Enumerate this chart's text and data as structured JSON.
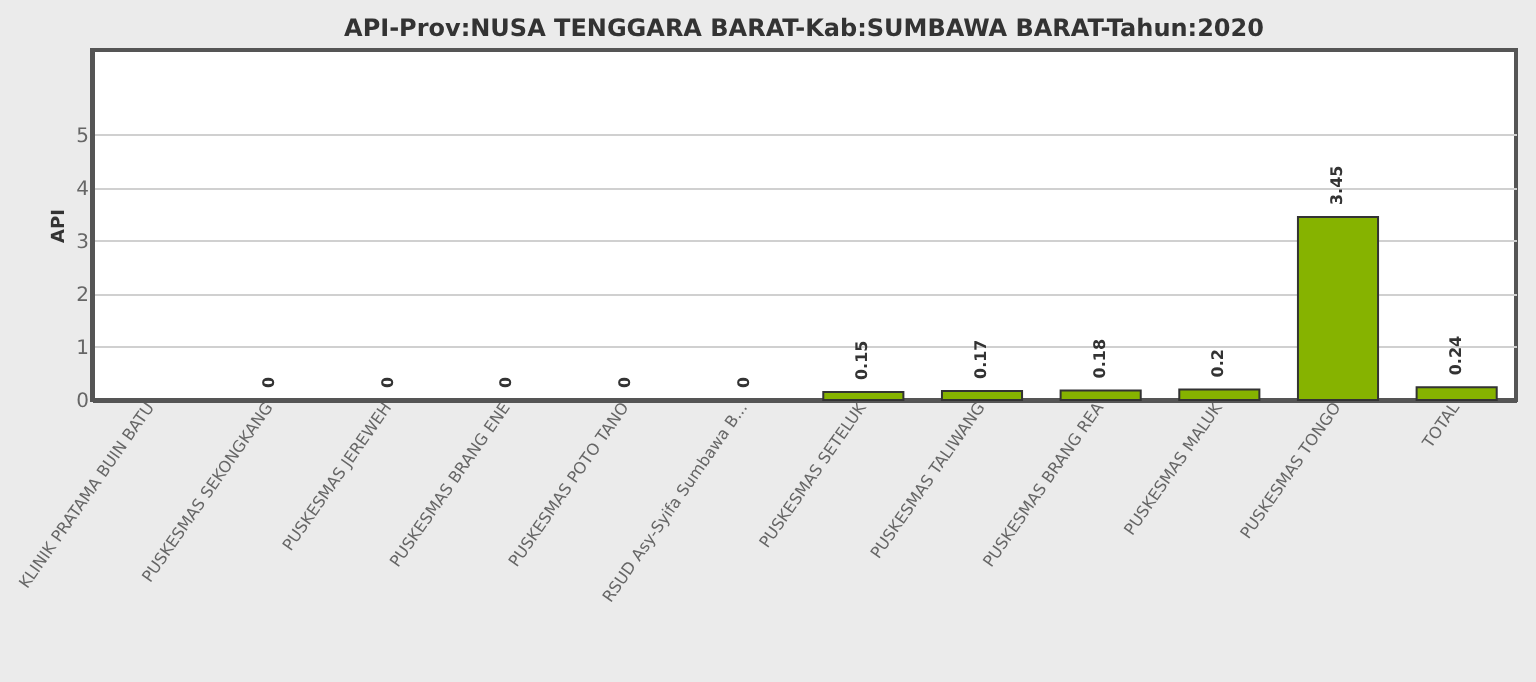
{
  "chart_data": {
    "type": "bar",
    "title": "API-Prov:NUSA TENGGARA BARAT-Kab:SUMBAWA BARAT-Tahun:2020",
    "ylabel": "API",
    "categories": [
      "KLINIK PRATAMA BUIN BATU",
      "PUSKESMAS SEKONGKANG",
      "PUSKESMAS JEREWEH",
      "PUSKESMAS BRANG ENE",
      "PUSKESMAS POTO TANO",
      "RSUD Asy-Syifa Sumbawa B...",
      "PUSKESMAS SETELUK",
      "PUSKESMAS TALIWANG",
      "PUSKESMAS BRANG REA",
      "PUSKESMAS MALUK",
      "PUSKESMAS TONGO",
      "TOTAL"
    ],
    "values": [
      null,
      0,
      0,
      0,
      0,
      0,
      0.15,
      0.17,
      0.18,
      0.2,
      3.45,
      0.24
    ],
    "color": "#86b300",
    "ylim": [
      0,
      6.6
    ],
    "yticks": [
      0,
      1,
      2,
      3,
      4,
      5
    ],
    "grid": "y",
    "data_labels": true
  }
}
